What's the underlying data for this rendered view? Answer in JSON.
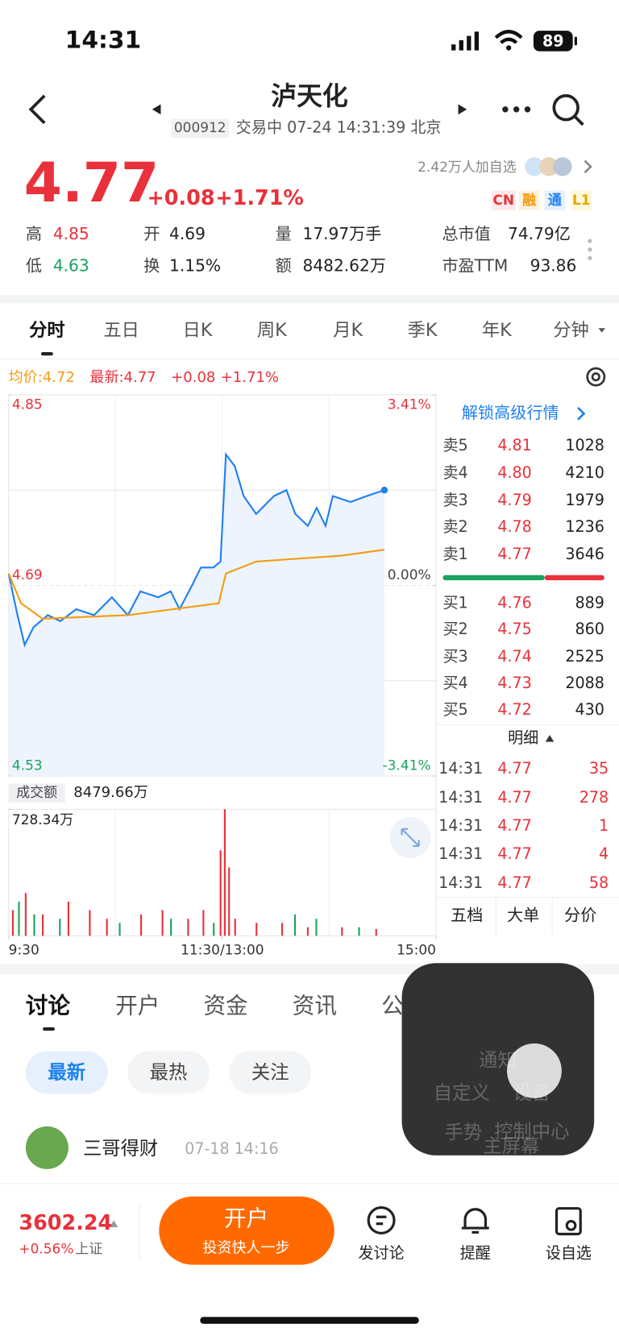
{
  "status": {
    "time": "14:31",
    "battery": "89"
  },
  "header": {
    "title": "泸天化",
    "code": "000912",
    "status": "交易中 07-24 14:31:39 北京"
  },
  "quote": {
    "price": "4.77",
    "change": "+0.08",
    "percent": "+1.71%",
    "watchers": "2.42万人加自选",
    "badges": [
      "CN",
      "融",
      "通",
      "L1"
    ],
    "stats": [
      {
        "label": "高",
        "value": "4.85"
      },
      {
        "label": "低",
        "value": "4.63"
      },
      {
        "label": "开",
        "value": "4.69"
      },
      {
        "label": "换",
        "value": "1.15%"
      },
      {
        "label": "量",
        "value": "17.97万手"
      },
      {
        "label": "额",
        "value": "8482.62万"
      },
      {
        "label": "总市值",
        "value": "74.79亿"
      },
      {
        "label": "市盈TTM",
        "value": "93.86"
      }
    ]
  },
  "tabs": [
    "分时",
    "五日",
    "日K",
    "周K",
    "月K",
    "季K",
    "年K",
    "分钟"
  ],
  "chart_data": {
    "type": "line",
    "legend": [
      "均价:4.72",
      "最新:4.77",
      "+0.08",
      "+1.71%"
    ],
    "xlim": [
      0,
      240
    ],
    "xticks": [
      {
        "value": 0,
        "label": "9:30"
      },
      {
        "value": 120,
        "label": "11:30/13:00"
      },
      {
        "value": 240,
        "label": "15:00"
      }
    ],
    "xgrid": [
      60,
      120,
      180
    ],
    "ylim": [
      4.53,
      4.85
    ],
    "yticks": [
      4.53,
      4.69,
      4.85
    ],
    "ygrid": [
      4.61,
      4.69,
      4.77
    ],
    "y2lim": [
      -3.41,
      3.41
    ],
    "y2ticks": [
      {
        "value": 3.41,
        "label": "3.41%"
      },
      {
        "value": 0,
        "label": "0.00%"
      },
      {
        "value": -3.41,
        "label": "-3.41%"
      }
    ],
    "series": [
      {
        "color": "#1e80f0",
        "x": [
          0,
          5,
          9,
          14,
          22,
          29,
          38,
          48,
          58,
          67,
          74,
          84,
          91,
          96,
          103,
          108,
          115,
          119,
          122,
          127,
          132,
          139,
          149,
          156,
          161,
          168,
          173,
          178,
          182,
          192,
          201,
          211
        ],
        "values": [
          4.7,
          4.665,
          4.64,
          4.655,
          4.665,
          4.66,
          4.67,
          4.665,
          4.68,
          4.665,
          4.685,
          4.68,
          4.685,
          4.67,
          4.69,
          4.705,
          4.705,
          4.71,
          4.8,
          4.79,
          4.765,
          4.75,
          4.765,
          4.77,
          4.75,
          4.74,
          4.755,
          4.74,
          4.765,
          4.76,
          4.765,
          4.77
        ]
      },
      {
        "color": "#f39c12",
        "x": [
          0,
          7,
          19,
          67,
          118,
          122,
          139,
          187,
          211
        ],
        "values": [
          4.7,
          4.675,
          4.662,
          4.665,
          4.675,
          4.7,
          4.71,
          4.715,
          4.72
        ]
      }
    ],
    "volume": {
      "title": "成交额",
      "total": "8479.66万",
      "ylim": [
        0,
        728.34
      ],
      "yticks": [
        {
          "value": 728.34,
          "label": "728.34万"
        }
      ],
      "series": [
        {
          "color": "#e8313a",
          "x": [
            2.4,
            9.6,
            19.2,
            33.6,
            45.6,
            55.2,
            74.4,
            86.4,
            100.8,
            109.4,
            119,
            121.4,
            123.8,
            127.2,
            139.2,
            153.6,
            168,
            187.2,
            206.4
          ],
          "values": [
            148,
            246,
            123,
            197,
            148,
            98,
            123,
            148,
            98,
            148,
            492,
            728.34,
            394,
            98,
            74,
            74,
            49,
            49,
            39
          ]
        },
        {
          "color": "#1aa260",
          "x": [
            5.8,
            14.4,
            28.8,
            62.4,
            91.2,
            115.2,
            160.8,
            172.8,
            196.8
          ],
          "values": [
            197,
            123,
            98,
            74,
            98,
            74,
            123,
            98,
            49
          ]
        }
      ]
    }
  },
  "orderbook": {
    "unlock": "解锁高级行情",
    "sell": [
      [
        "卖5",
        "4.81",
        "1028"
      ],
      [
        "卖4",
        "4.80",
        "4210"
      ],
      [
        "卖3",
        "4.79",
        "1979"
      ],
      [
        "卖2",
        "4.78",
        "1236"
      ],
      [
        "卖1",
        "4.77",
        "3646"
      ]
    ],
    "buy": [
      [
        "买1",
        "4.76",
        "889"
      ],
      [
        "买2",
        "4.75",
        "860"
      ],
      [
        "买3",
        "4.74",
        "2525"
      ],
      [
        "买4",
        "4.73",
        "2088"
      ],
      [
        "买5",
        "4.72",
        "430"
      ]
    ],
    "detail": "明细",
    "trades": [
      [
        "14:31",
        "4.77",
        "35"
      ],
      [
        "14:31",
        "4.77",
        "278"
      ],
      [
        "14:31",
        "4.77",
        "1"
      ],
      [
        "14:31",
        "4.77",
        "4"
      ],
      [
        "14:31",
        "4.77",
        "58"
      ]
    ],
    "tabs": [
      "五档",
      "大单",
      "分价"
    ]
  },
  "discussion": {
    "tabs": [
      "讨论",
      "开户",
      "资金",
      "资讯",
      "公"
    ],
    "filters": [
      "最新",
      "最热",
      "关注"
    ],
    "post": {
      "user": "三哥得财",
      "time": "07-18 14:16"
    }
  },
  "footer": {
    "index": "3602.24",
    "change": "+0.56%",
    "market": "上证",
    "button": "开户",
    "button_sub": "投资快人一步",
    "actions": [
      "发讨论",
      "提醒",
      "设自选"
    ]
  },
  "assistive": [
    "通知",
    "自定义",
    "设备",
    "手势",
    "控制中心",
    "主屏幕"
  ]
}
